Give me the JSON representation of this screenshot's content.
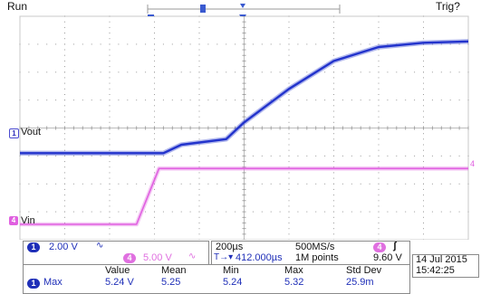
{
  "top": {
    "run_label": "Run",
    "trig_label": "Trig?"
  },
  "channels": {
    "ch1": {
      "number": "1",
      "name": "Vout",
      "scale": "2.00 V",
      "coupling": "∿",
      "color": "#2233cc"
    },
    "ch4": {
      "number": "4",
      "name": "Vin",
      "scale": "5.00 V",
      "coupling": "∿",
      "color": "#e060e0"
    }
  },
  "timebase": {
    "scale": "200µs",
    "sample_rate": "500MS/s",
    "record": "1M points",
    "trigger_channel": "4",
    "trigger_slope": "ʃ",
    "trigger_level": "9.60 V",
    "trigger_delay": "412.000µs",
    "trigger_delay_prefix": "T→▾"
  },
  "datetime": {
    "date": "14 Jul  2015",
    "time": "15:42:25"
  },
  "measurements": {
    "headers": [
      "Value",
      "Mean",
      "Min",
      "Max",
      "Std Dev"
    ],
    "rows": [
      {
        "channel": "1",
        "name": "Max",
        "values": [
          "5.24 V",
          "5.25",
          "5.24",
          "5.32",
          "25.9m"
        ]
      }
    ]
  },
  "waveforms": {
    "ch1_points": [
      [
        0,
        3.1
      ],
      [
        3.2,
        3.1
      ],
      [
        3.6,
        3.4
      ],
      [
        4.6,
        3.6
      ],
      [
        5.0,
        4.2
      ],
      [
        6.0,
        5.4
      ],
      [
        7.0,
        6.4
      ],
      [
        8.0,
        6.9
      ],
      [
        9.0,
        7.05
      ],
      [
        10.0,
        7.1
      ]
    ],
    "ch4_points": [
      [
        0,
        0.55
      ],
      [
        2.6,
        0.55
      ],
      [
        3.1,
        2.55
      ],
      [
        10.0,
        2.55
      ]
    ]
  }
}
